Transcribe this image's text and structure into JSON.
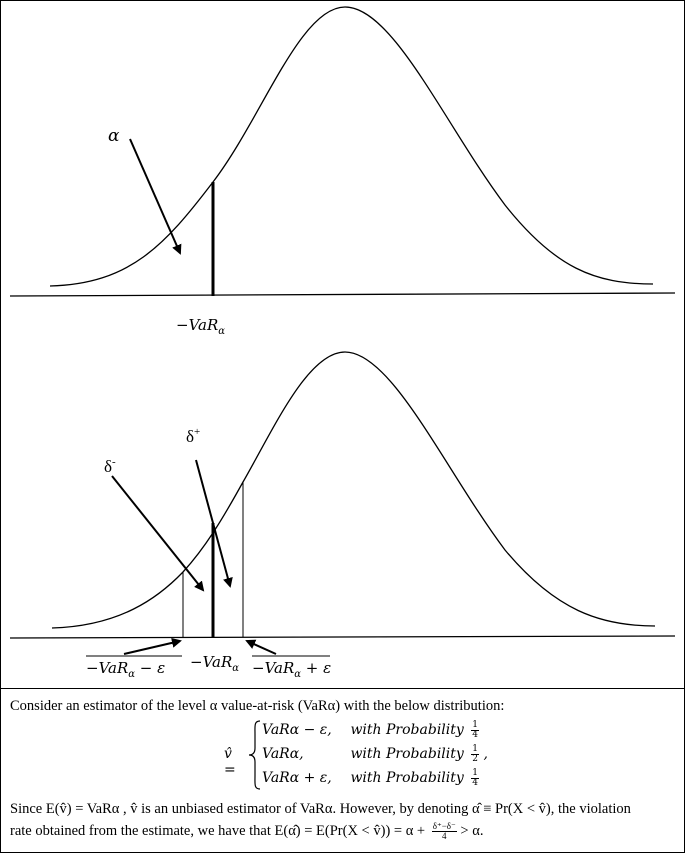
{
  "top_panel": {
    "alpha_label": "α",
    "var_label": "−VaR",
    "var_sub": "α"
  },
  "bottom_panel": {
    "delta_minus_label": "δ",
    "delta_minus_sup": "-",
    "delta_plus_label": "δ",
    "delta_plus_sup": "+",
    "left_label": "−VaR",
    "left_sub": "α",
    "left_tail": " − ε",
    "center_label": "−VaR",
    "center_sub": "α",
    "right_label": "−VaR",
    "right_sub": "α",
    "right_tail": " + ε"
  },
  "caption": {
    "intro": "Consider an estimator of the level α value-at-risk (VaRα) with the below distribution:",
    "estimator_lhs": "v̂ =",
    "cases": [
      {
        "value": "VaRα − ε,",
        "text": "with Probability",
        "num": "1",
        "den": "4",
        "trail": ""
      },
      {
        "value": "VaRα,",
        "text": "with Probability",
        "num": "1",
        "den": "2",
        "trail": ","
      },
      {
        "value": "VaRα + ε,",
        "text": "with Probability",
        "num": "1",
        "den": "4",
        "trail": ""
      }
    ],
    "since_line1": "Since E(v̂) = VaRα , v̂ is an unbiased estimator of VaRα. However, by denoting α̂ ≡ Pr(X < v̂), the violation",
    "since_line2_a": "rate obtained from the estimate, we have that E(α̂) = E(Pr(X < v̂)) = α +",
    "since_frac_num": "δ⁺−δ⁻",
    "since_frac_den": "4",
    "since_line2_b": "> α."
  }
}
